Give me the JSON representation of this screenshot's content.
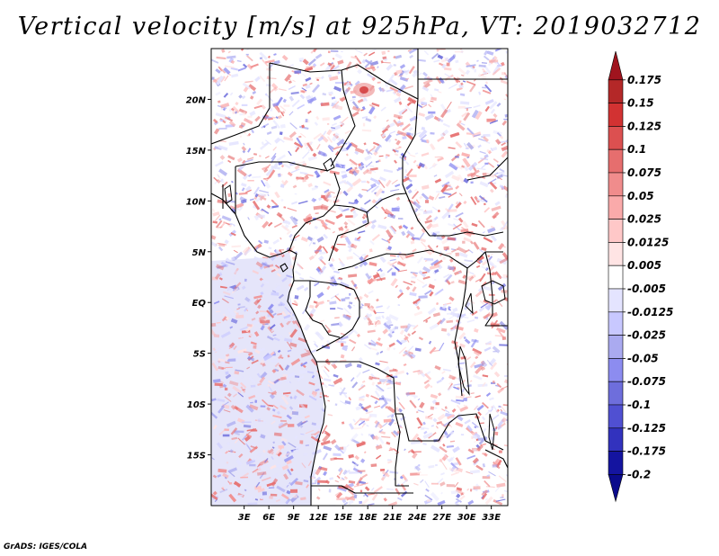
{
  "title": "Vertical velocity [m/s] at 925hPa, VT: 2019032712",
  "credit": "GrADS: IGES/COLA",
  "map": {
    "region": "Central Africa",
    "lon_range": [
      -1,
      35
    ],
    "lat_range": [
      -20,
      25
    ],
    "x_ticks": [
      "3E",
      "6E",
      "9E",
      "12E",
      "15E",
      "18E",
      "21E",
      "24E",
      "27E",
      "30E",
      "33E"
    ],
    "y_ticks": [
      "20N",
      "15N",
      "10N",
      "5N",
      "EQ",
      "5S",
      "10S",
      "15S"
    ],
    "features": [
      "country boundaries",
      "coastlines",
      "lakes"
    ],
    "ocean_tint_color": "#b4b4f0",
    "highland_tint_color": "#f0a8a8"
  },
  "colorbar": {
    "labels": [
      "0.175",
      "0.15",
      "0.125",
      "0.1",
      "0.075",
      "0.05",
      "0.025",
      "0.0125",
      "0.005",
      "-0.005",
      "-0.0125",
      "-0.025",
      "-0.05",
      "-0.075",
      "-0.1",
      "-0.125",
      "-0.175",
      "-0.2"
    ],
    "colors": [
      "#a0141e",
      "#b42828",
      "#d23232",
      "#dc5050",
      "#e66e6e",
      "#f08c8c",
      "#faaaaa",
      "#ffc8c8",
      "#ffe4e4",
      "#ffffff",
      "#e4e4ff",
      "#c8c8ff",
      "#aaaaf0",
      "#8c8cf0",
      "#6e6edc",
      "#5050d2",
      "#3232be",
      "#1414a0",
      "#0a0a8c"
    ]
  }
}
